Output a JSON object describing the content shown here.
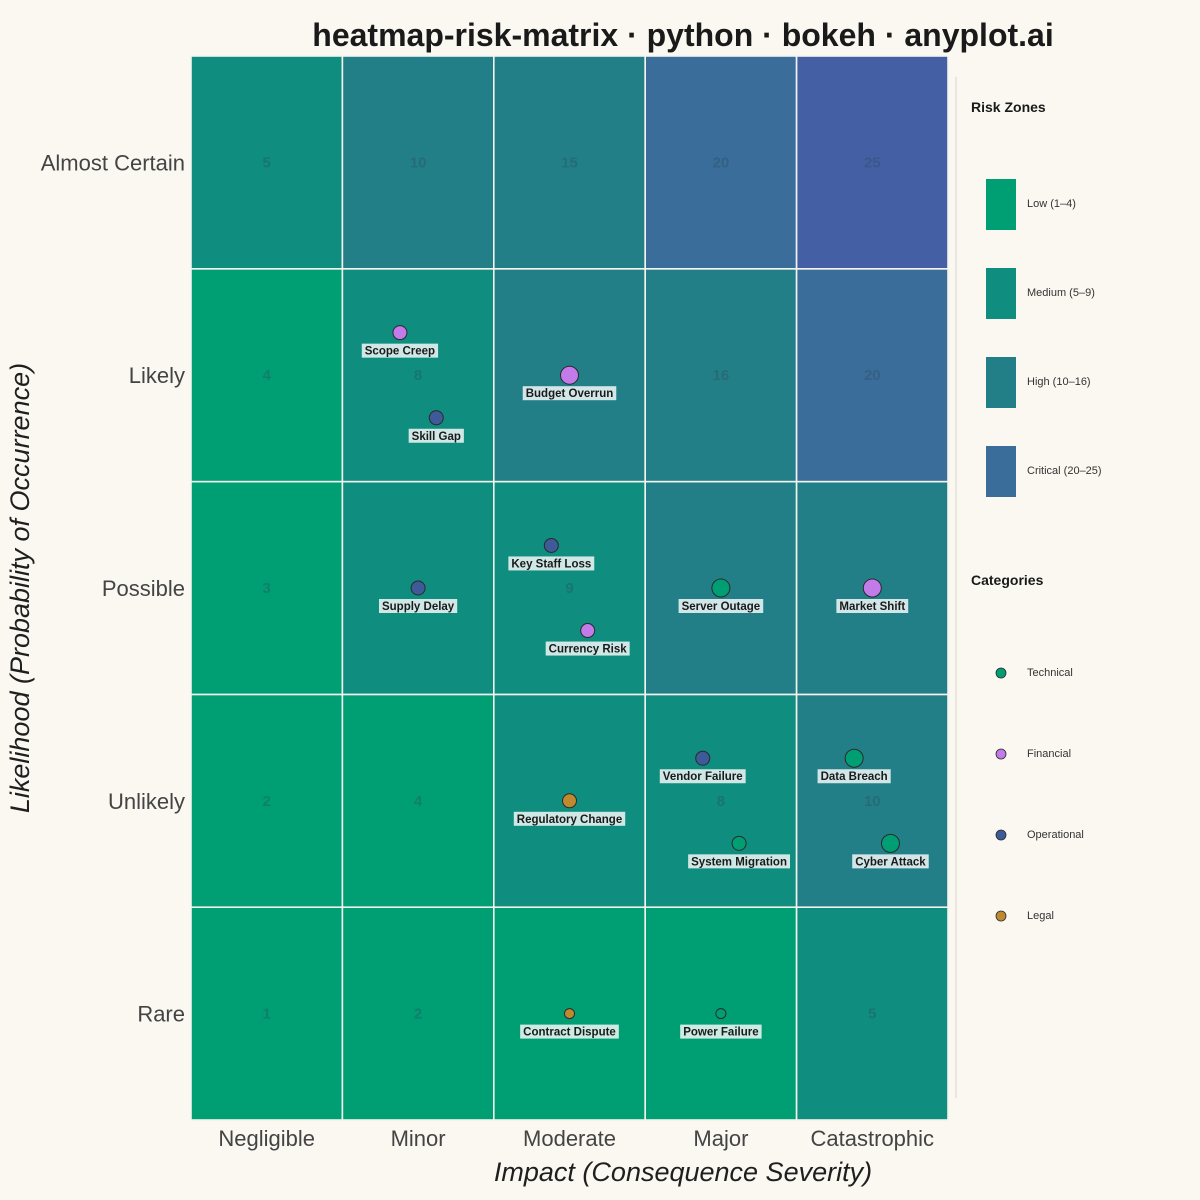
{
  "chart_data": {
    "type": "heatmap",
    "title": "heatmap-risk-matrix · python · bokeh · anyplot.ai",
    "xlabel": "Impact (Consequence Severity)",
    "ylabel": "Likelihood (Probability of Occurrence)",
    "x_categories": [
      "Negligible",
      "Minor",
      "Moderate",
      "Major",
      "Catastrophic"
    ],
    "y_categories": [
      "Rare",
      "Unlikely",
      "Possible",
      "Likely",
      "Almost Certain"
    ],
    "cells": [
      [
        1,
        2,
        3,
        4,
        5
      ],
      [
        2,
        4,
        6,
        8,
        10
      ],
      [
        3,
        6,
        9,
        12,
        15
      ],
      [
        4,
        8,
        12,
        16,
        20
      ],
      [
        5,
        10,
        15,
        20,
        25
      ]
    ],
    "cells_note": "cells[likelihood-1][impact-1] = likelihood × impact",
    "visible_scores": [
      {
        "impact": 1,
        "likelihood": 5,
        "score": 5
      },
      {
        "impact": 2,
        "likelihood": 5,
        "score": 10
      },
      {
        "impact": 3,
        "likelihood": 5,
        "score": 15
      },
      {
        "impact": 4,
        "likelihood": 5,
        "score": 20
      },
      {
        "impact": 5,
        "likelihood": 5,
        "score": 25
      },
      {
        "impact": 1,
        "likelihood": 4,
        "score": 4
      },
      {
        "impact": 2,
        "likelihood": 4,
        "score": 8
      },
      {
        "impact": 4,
        "likelihood": 4,
        "score": 16
      },
      {
        "impact": 5,
        "likelihood": 4,
        "score": 20
      },
      {
        "impact": 1,
        "likelihood": 3,
        "score": 3
      },
      {
        "impact": 3,
        "likelihood": 3,
        "score": 9
      },
      {
        "impact": 1,
        "likelihood": 2,
        "score": 2
      },
      {
        "impact": 2,
        "likelihood": 2,
        "score": 4
      },
      {
        "impact": 4,
        "likelihood": 2,
        "score": 8
      },
      {
        "impact": 5,
        "likelihood": 2,
        "score": 10
      },
      {
        "impact": 1,
        "likelihood": 1,
        "score": 1
      },
      {
        "impact": 2,
        "likelihood": 1,
        "score": 2
      },
      {
        "impact": 5,
        "likelihood": 1,
        "score": 5
      }
    ],
    "risk_zones": [
      {
        "name": "Low (1–4)",
        "min": 1,
        "max": 4,
        "color": "#009e73"
      },
      {
        "name": "Medium (5–9)",
        "min": 5,
        "max": 9,
        "color": "#0f8d7e"
      },
      {
        "name": "High (10–16)",
        "min": 10,
        "max": 16,
        "color": "#227f88"
      },
      {
        "name": "Critical (20–25)",
        "min": 20,
        "max": 25,
        "color": "#3a6d9a"
      }
    ],
    "categories": [
      {
        "name": "Technical",
        "color": "#009e73"
      },
      {
        "name": "Financial",
        "color": "#c27be8"
      },
      {
        "name": "Operational",
        "color": "#3e5a98"
      },
      {
        "name": "Legal",
        "color": "#bf8a2e"
      }
    ],
    "risks": [
      {
        "name": "Scope Creep",
        "category": "Financial",
        "impact": 1.88,
        "likelihood": 4.2,
        "size": 7
      },
      {
        "name": "Skill Gap",
        "category": "Operational",
        "impact": 2.12,
        "likelihood": 3.8,
        "size": 7
      },
      {
        "name": "Budget Overrun",
        "category": "Financial",
        "impact": 3.0,
        "likelihood": 4.0,
        "size": 9
      },
      {
        "name": "Key Staff Loss",
        "category": "Operational",
        "impact": 2.88,
        "likelihood": 3.2,
        "size": 7
      },
      {
        "name": "Supply Delay",
        "category": "Operational",
        "impact": 2.0,
        "likelihood": 3.0,
        "size": 7
      },
      {
        "name": "Currency Risk",
        "category": "Financial",
        "impact": 3.12,
        "likelihood": 2.8,
        "size": 7
      },
      {
        "name": "Server Outage",
        "category": "Technical",
        "impact": 4.0,
        "likelihood": 3.0,
        "size": 9
      },
      {
        "name": "Market Shift",
        "category": "Financial",
        "impact": 5.0,
        "likelihood": 3.0,
        "size": 9
      },
      {
        "name": "Vendor Failure",
        "category": "Operational",
        "impact": 3.88,
        "likelihood": 2.2,
        "size": 7
      },
      {
        "name": "Data Breach",
        "category": "Technical",
        "impact": 4.88,
        "likelihood": 2.2,
        "size": 9
      },
      {
        "name": "Regulatory Change",
        "category": "Legal",
        "impact": 3.0,
        "likelihood": 2.0,
        "size": 7
      },
      {
        "name": "System Migration",
        "category": "Technical",
        "impact": 4.12,
        "likelihood": 1.8,
        "size": 7
      },
      {
        "name": "Cyber Attack",
        "category": "Technical",
        "impact": 5.12,
        "likelihood": 1.8,
        "size": 9
      },
      {
        "name": "Contract Dispute",
        "category": "Legal",
        "impact": 3.0,
        "likelihood": 1.0,
        "size": 5
      },
      {
        "name": "Power Failure",
        "category": "Technical",
        "impact": 4.0,
        "likelihood": 1.0,
        "size": 5
      }
    ],
    "legend": {
      "zones_title": "Risk Zones",
      "categories_title": "Categories",
      "placement": "right"
    },
    "grid": true
  }
}
